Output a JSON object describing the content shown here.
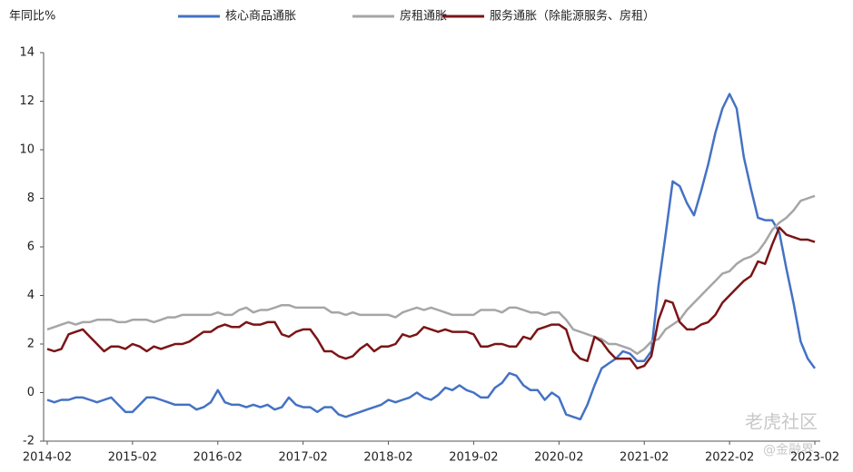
{
  "chart_data": {
    "type": "line",
    "y_label": "年同比%",
    "categories": [
      "2014-02",
      null,
      null,
      null,
      null,
      null,
      null,
      null,
      null,
      null,
      null,
      null,
      "2015-02",
      null,
      null,
      null,
      null,
      null,
      null,
      null,
      null,
      null,
      null,
      null,
      "2016-02",
      null,
      null,
      null,
      null,
      null,
      null,
      null,
      null,
      null,
      null,
      null,
      "2017-02",
      null,
      null,
      null,
      null,
      null,
      null,
      null,
      null,
      null,
      null,
      null,
      "2018-02",
      null,
      null,
      null,
      null,
      null,
      null,
      null,
      null,
      null,
      null,
      null,
      "2019-02",
      null,
      null,
      null,
      null,
      null,
      null,
      null,
      null,
      null,
      null,
      null,
      "2020-02",
      null,
      null,
      null,
      null,
      null,
      null,
      null,
      null,
      null,
      null,
      null,
      "2021-02",
      null,
      null,
      null,
      null,
      null,
      null,
      null,
      null,
      null,
      null,
      null,
      "2022-02",
      null,
      null,
      null,
      null,
      null,
      null,
      null,
      null,
      null,
      null,
      null,
      "2023-02"
    ],
    "series": [
      {
        "name": "核心商品通胀",
        "color": "#4472c4",
        "values": [
          -0.3,
          -0.4,
          -0.3,
          -0.3,
          -0.2,
          -0.2,
          -0.3,
          -0.4,
          -0.3,
          -0.2,
          -0.5,
          -0.8,
          -0.8,
          -0.5,
          -0.2,
          -0.2,
          -0.3,
          -0.4,
          -0.5,
          -0.5,
          -0.5,
          -0.7,
          -0.6,
          -0.4,
          0.1,
          -0.4,
          -0.5,
          -0.5,
          -0.6,
          -0.5,
          -0.6,
          -0.5,
          -0.7,
          -0.6,
          -0.2,
          -0.5,
          -0.6,
          -0.6,
          -0.8,
          -0.6,
          -0.6,
          -0.9,
          -1.0,
          -0.9,
          -0.8,
          -0.7,
          -0.6,
          -0.5,
          -0.3,
          -0.4,
          -0.3,
          -0.2,
          0,
          -0.2,
          -0.3,
          -0.1,
          0.2,
          0.1,
          0.3,
          0.1,
          0,
          -0.2,
          -0.2,
          0.2,
          0.4,
          0.8,
          0.7,
          0.3,
          0.1,
          0.1,
          -0.3,
          0,
          -0.2,
          -0.9,
          -1.0,
          -1.1,
          -0.5,
          0.3,
          1.0,
          1.2,
          1.4,
          1.7,
          1.6,
          1.3,
          1.3,
          1.7,
          4.4,
          6.5,
          8.7,
          8.5,
          7.8,
          7.3,
          8.3,
          9.4,
          10.7,
          11.7,
          12.3,
          11.7,
          9.7,
          8.4,
          7.2,
          7.1,
          7.1,
          6.6,
          5.1,
          3.7,
          2.1,
          1.4,
          1.0
        ]
      },
      {
        "name": "房租通胀",
        "color": "#a6a6a6",
        "values": [
          2.6,
          2.7,
          2.8,
          2.9,
          2.8,
          2.9,
          2.9,
          3.0,
          3.0,
          3.0,
          2.9,
          2.9,
          3.0,
          3.0,
          3.0,
          2.9,
          3.0,
          3.1,
          3.1,
          3.2,
          3.2,
          3.2,
          3.2,
          3.2,
          3.3,
          3.2,
          3.2,
          3.4,
          3.5,
          3.3,
          3.4,
          3.4,
          3.5,
          3.6,
          3.6,
          3.5,
          3.5,
          3.5,
          3.5,
          3.5,
          3.3,
          3.3,
          3.2,
          3.3,
          3.2,
          3.2,
          3.2,
          3.2,
          3.2,
          3.1,
          3.3,
          3.4,
          3.5,
          3.4,
          3.5,
          3.4,
          3.3,
          3.2,
          3.2,
          3.2,
          3.2,
          3.4,
          3.4,
          3.4,
          3.3,
          3.5,
          3.5,
          3.4,
          3.3,
          3.3,
          3.2,
          3.3,
          3.3,
          3.0,
          2.6,
          2.5,
          2.4,
          2.3,
          2.2,
          2.0,
          2.0,
          1.9,
          1.8,
          1.6,
          1.8,
          2.1,
          2.2,
          2.6,
          2.8,
          3.0,
          3.4,
          3.7,
          4.0,
          4.3,
          4.6,
          4.9,
          5.0,
          5.3,
          5.5,
          5.6,
          5.8,
          6.2,
          6.7,
          7.0,
          7.2,
          7.5,
          7.9,
          8.0,
          8.1
        ]
      },
      {
        "name": "服务通胀（除能源服务、房租）",
        "color": "#7b1416",
        "values": [
          1.8,
          1.7,
          1.8,
          2.4,
          2.5,
          2.6,
          2.3,
          2.0,
          1.7,
          1.9,
          1.9,
          1.8,
          2.0,
          1.9,
          1.7,
          1.9,
          1.8,
          1.9,
          2.0,
          2.0,
          2.1,
          2.3,
          2.5,
          2.5,
          2.7,
          2.8,
          2.7,
          2.7,
          2.9,
          2.8,
          2.8,
          2.9,
          2.9,
          2.4,
          2.3,
          2.5,
          2.6,
          2.6,
          2.2,
          1.7,
          1.7,
          1.5,
          1.4,
          1.5,
          1.8,
          2.0,
          1.7,
          1.9,
          1.9,
          2.0,
          2.4,
          2.3,
          2.4,
          2.7,
          2.6,
          2.5,
          2.6,
          2.5,
          2.5,
          2.5,
          2.4,
          1.9,
          1.9,
          2.0,
          2.0,
          1.9,
          1.9,
          2.3,
          2.2,
          2.6,
          2.7,
          2.8,
          2.8,
          2.6,
          1.7,
          1.4,
          1.3,
          2.3,
          2.1,
          1.7,
          1.4,
          1.4,
          1.4,
          1.0,
          1.1,
          1.5,
          3.0,
          3.8,
          3.7,
          2.9,
          2.6,
          2.6,
          2.8,
          2.9,
          3.2,
          3.7,
          4.0,
          4.3,
          4.6,
          4.8,
          5.4,
          5.3,
          6.1,
          6.8,
          6.5,
          6.4,
          6.3,
          6.3,
          6.2
        ]
      }
    ],
    "ylim": [
      -2,
      14
    ],
    "yticks": [
      -2,
      0,
      2,
      4,
      6,
      8,
      10,
      12,
      14
    ],
    "grid": false,
    "watermark": [
      "老虎社区",
      "@金融界"
    ]
  }
}
